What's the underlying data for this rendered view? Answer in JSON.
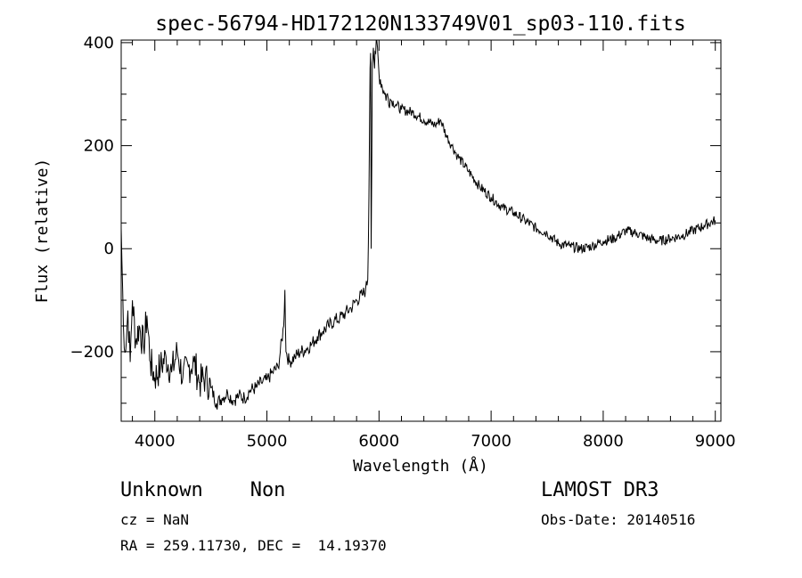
{
  "chart_data": {
    "type": "line",
    "title": "spec-56794-HD172120N133749V01_sp03-110.fits",
    "xlabel": "Wavelength (Å)",
    "ylabel": "Flux (relative)",
    "xlim": [
      3700,
      9050
    ],
    "ylim": [
      -335,
      405
    ],
    "x_ticks": [
      4000,
      5000,
      6000,
      7000,
      8000,
      9000
    ],
    "x_tick_labels": [
      "4000",
      "5000",
      "6000",
      "7000",
      "8000",
      "9000"
    ],
    "y_ticks": [
      -200,
      0,
      200,
      400
    ],
    "y_tick_labels": [
      "−200",
      "0",
      "200",
      "400"
    ],
    "grid": false,
    "legend": "none",
    "line_color": "#000000",
    "series": [
      {
        "x": [
          3700,
          3720,
          3740,
          3760,
          3780,
          3800,
          3830,
          3860,
          3900,
          3930,
          3960,
          4000,
          4050,
          4100,
          4150,
          4200,
          4250,
          4300,
          4350,
          4400,
          4450,
          4500,
          4550,
          4600,
          4650,
          4700,
          4750,
          4800,
          4850,
          4900,
          4950,
          5000,
          5050,
          5100,
          5150,
          5160,
          5170,
          5200,
          5250,
          5300,
          5350,
          5400,
          5450,
          5500,
          5550,
          5600,
          5650,
          5700,
          5750,
          5800,
          5850,
          5880,
          5900,
          5910,
          5920,
          5925,
          5930,
          5940,
          5950,
          5960,
          5970,
          5980,
          6000,
          6050,
          6100,
          6150,
          6200,
          6300,
          6400,
          6500,
          6550,
          6600,
          6650,
          6700,
          6800,
          6900,
          7000,
          7100,
          7200,
          7300,
          7400,
          7500,
          7600,
          7700,
          7800,
          7900,
          8000,
          8100,
          8200,
          8300,
          8400,
          8500,
          8600,
          8700,
          8800,
          8900,
          9000
        ],
        "y": [
          40,
          -150,
          -200,
          -120,
          -220,
          -100,
          -180,
          -150,
          -190,
          -130,
          -220,
          -250,
          -230,
          -210,
          -240,
          -200,
          -250,
          -230,
          -220,
          -260,
          -250,
          -270,
          -300,
          -290,
          -280,
          -295,
          -285,
          -290,
          -275,
          -270,
          -260,
          -255,
          -240,
          -230,
          -150,
          -80,
          -200,
          -220,
          -210,
          -200,
          -195,
          -185,
          -170,
          -160,
          -150,
          -140,
          -135,
          -125,
          -115,
          -100,
          -90,
          -80,
          -60,
          100,
          350,
          380,
          0,
          360,
          390,
          350,
          380,
          410,
          340,
          300,
          290,
          280,
          270,
          265,
          250,
          240,
          250,
          220,
          200,
          180,
          150,
          120,
          100,
          80,
          70,
          55,
          40,
          30,
          10,
          5,
          0,
          5,
          15,
          20,
          35,
          30,
          20,
          15,
          20,
          25,
          35,
          45,
          55
        ]
      }
    ]
  },
  "footer": {
    "object_type": "Unknown    Non",
    "survey": "LAMOST DR3",
    "cz": "cz = NaN",
    "obs_date": "Obs-Date: 20140516",
    "coords": "RA = 259.11730, DEC =  14.19370"
  }
}
